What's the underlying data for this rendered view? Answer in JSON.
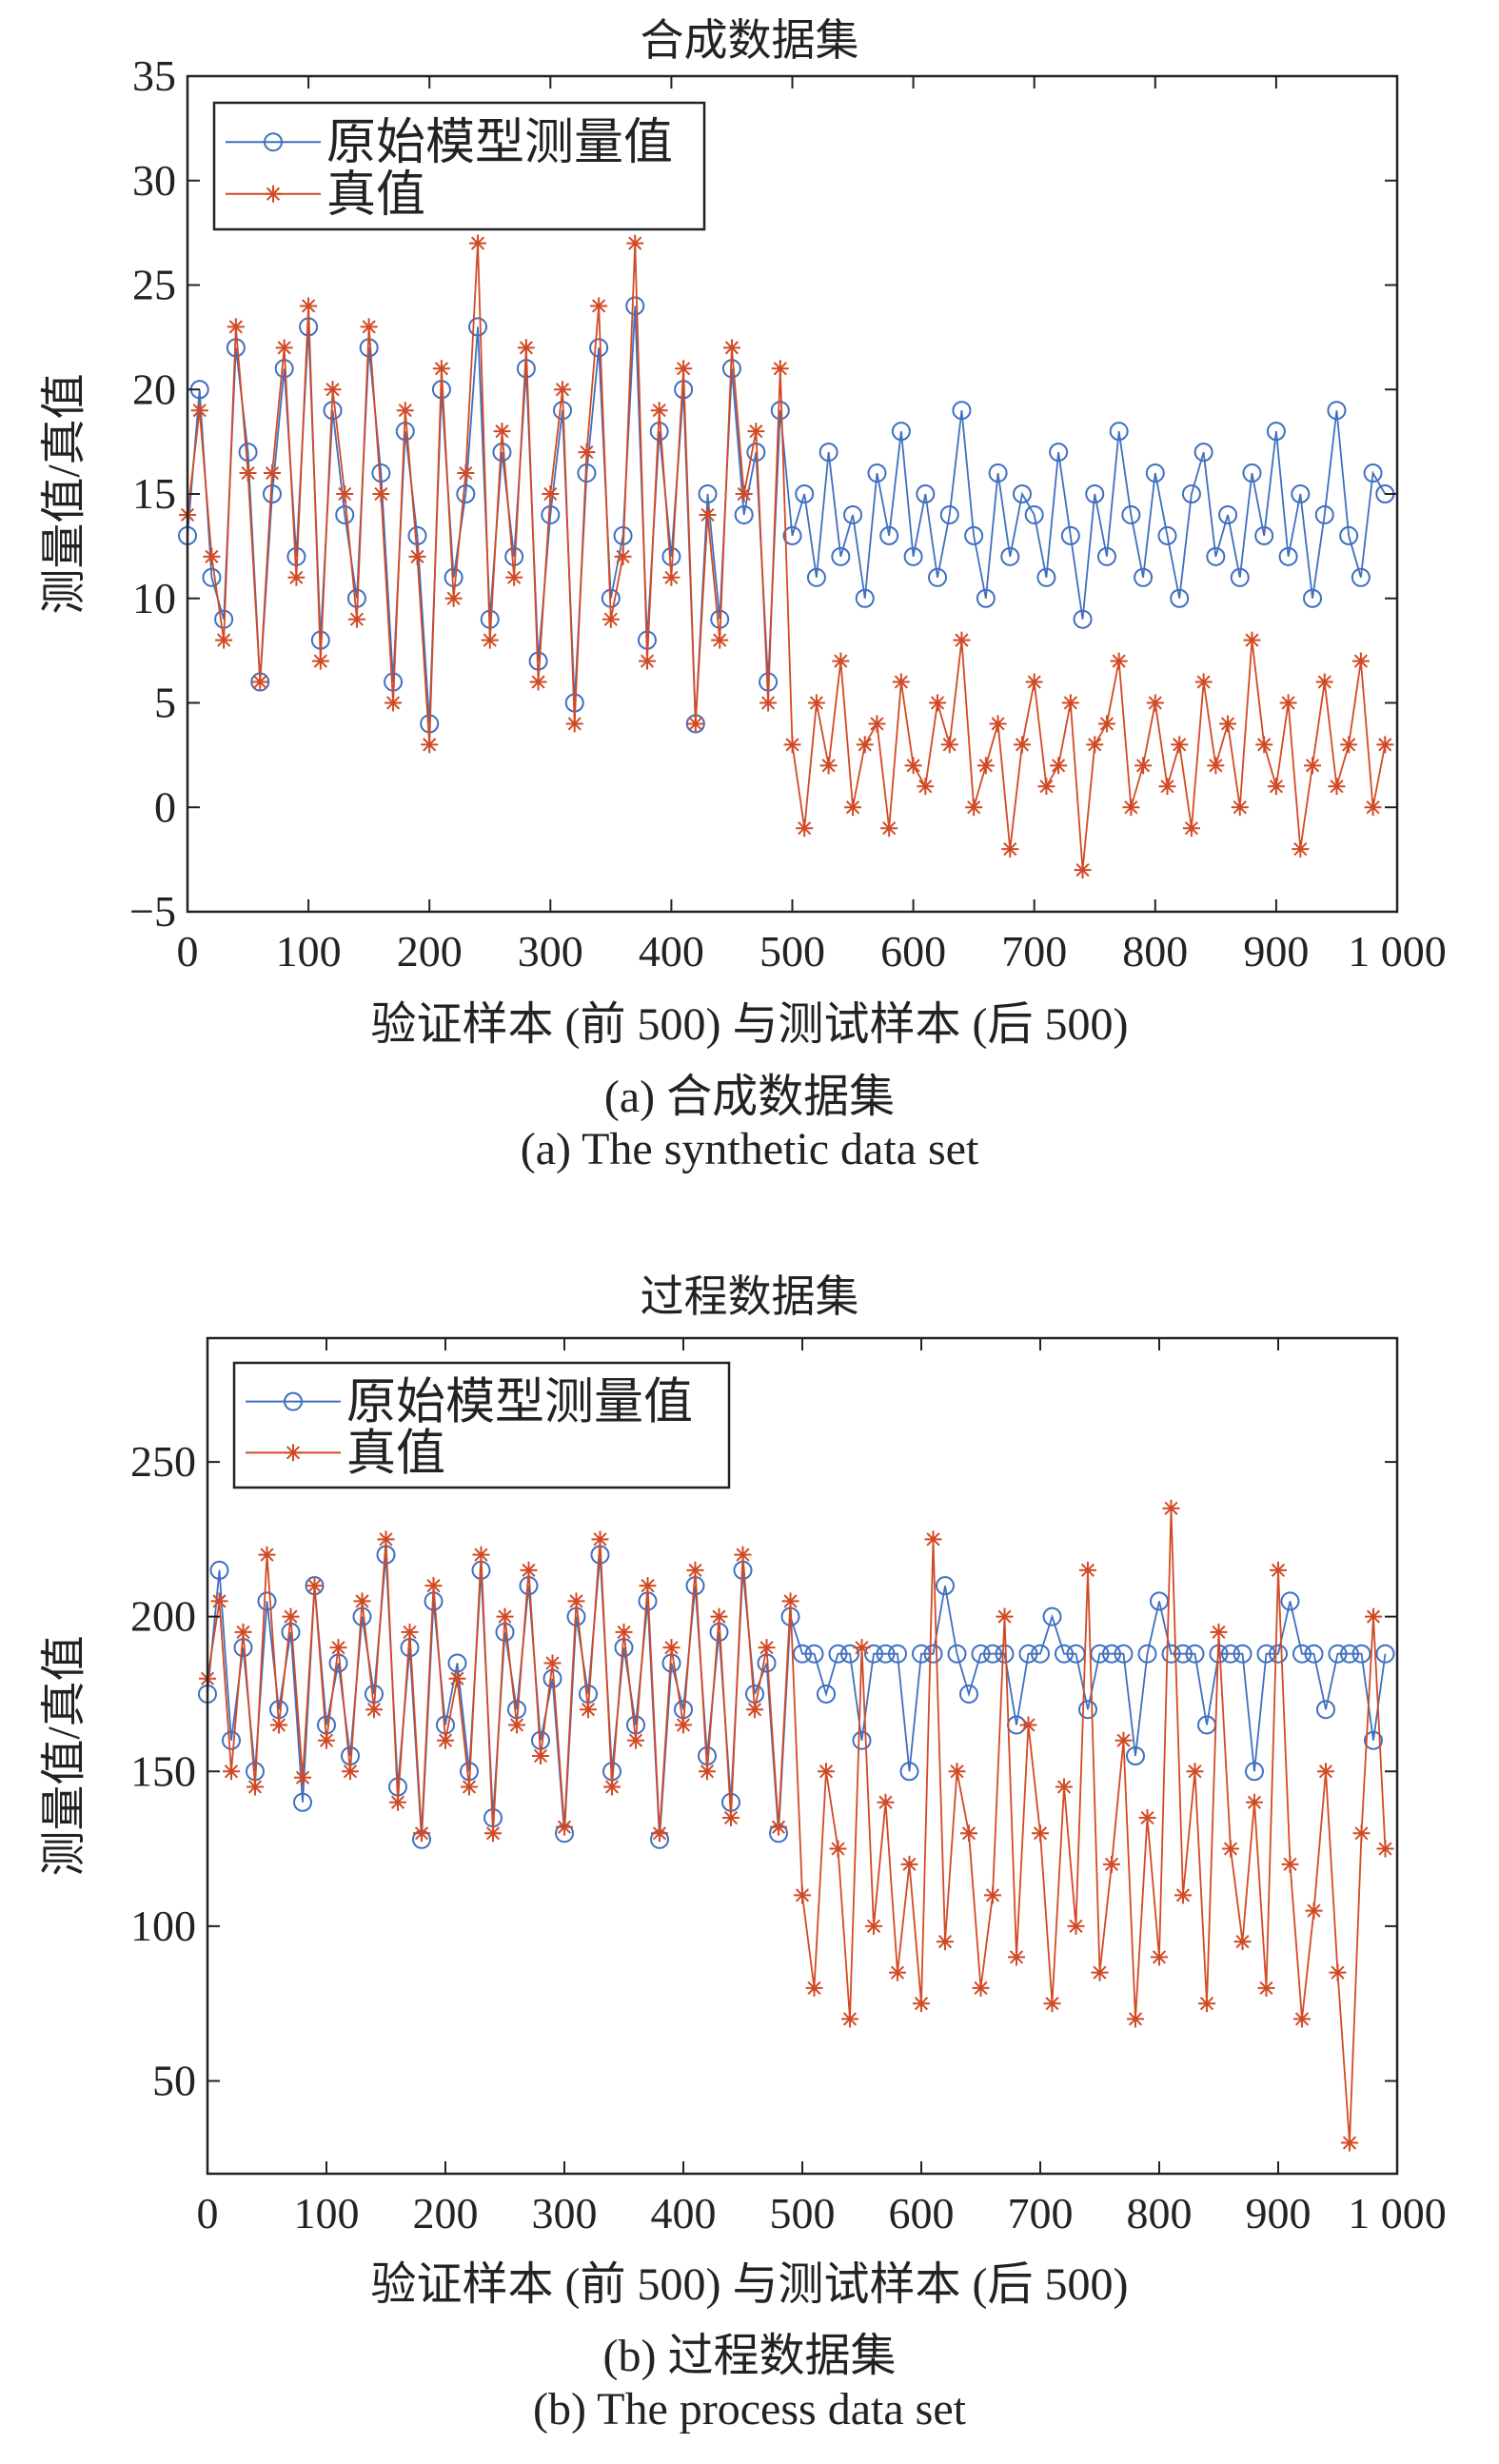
{
  "figure_a": {
    "caption_cn": "(a) 合成数据集",
    "caption_en": "(a) The synthetic data set"
  },
  "figure_b": {
    "caption_cn": "(b) 过程数据集",
    "caption_en": "(b) The process data set"
  },
  "colors": {
    "blue": "#3f6fc0",
    "red": "#d24a25",
    "axis": "#222222"
  },
  "chart_data": [
    {
      "type": "line",
      "title": "合成数据集",
      "xlabel": "验证样本 (前 500) 与测试样本 (后 500)",
      "ylabel": "测量值/真值",
      "xlim": [
        0,
        1000
      ],
      "ylim": [
        -5,
        35
      ],
      "xticks": [
        0,
        100,
        200,
        300,
        400,
        500,
        600,
        700,
        800,
        900,
        1000
      ],
      "xtick_labels": [
        "0",
        "100",
        "200",
        "300",
        "400",
        "500",
        "600",
        "700",
        "800",
        "900",
        "1 000"
      ],
      "yticks": [
        -5,
        0,
        5,
        10,
        15,
        20,
        25,
        30,
        35
      ],
      "ytick_labels": [
        "−5",
        "0",
        "5",
        "10",
        "15",
        "20",
        "25",
        "30",
        "35"
      ],
      "grid": false,
      "legend_position": "top-left",
      "x": [
        0,
        10,
        20,
        30,
        40,
        50,
        60,
        70,
        80,
        90,
        100,
        110,
        120,
        130,
        140,
        150,
        160,
        170,
        180,
        190,
        200,
        210,
        220,
        230,
        240,
        250,
        260,
        270,
        280,
        290,
        300,
        310,
        320,
        330,
        340,
        350,
        360,
        370,
        380,
        390,
        400,
        410,
        420,
        430,
        440,
        450,
        460,
        470,
        480,
        490,
        500,
        510,
        520,
        530,
        540,
        550,
        560,
        570,
        580,
        590,
        600,
        610,
        620,
        630,
        640,
        650,
        660,
        670,
        680,
        690,
        700,
        710,
        720,
        730,
        740,
        750,
        760,
        770,
        780,
        790,
        800,
        810,
        820,
        830,
        840,
        850,
        860,
        870,
        880,
        890,
        900,
        910,
        920,
        930,
        940,
        950,
        960,
        970,
        980,
        990
      ],
      "series": [
        {
          "name": "原始模型测量值",
          "marker": "circle",
          "color": "#3f6fc0",
          "values": [
            13,
            20,
            11,
            9,
            22,
            17,
            6,
            15,
            21,
            12,
            23,
            8,
            19,
            14,
            10,
            22,
            16,
            6,
            18,
            13,
            4,
            20,
            11,
            15,
            23,
            9,
            17,
            12,
            21,
            7,
            14,
            19,
            5,
            16,
            22,
            10,
            13,
            24,
            8,
            18,
            12,
            20,
            4,
            15,
            9,
            21,
            14,
            17,
            6,
            19,
            13,
            15,
            11,
            17,
            12,
            14,
            10,
            16,
            13,
            18,
            12,
            15,
            11,
            14,
            19,
            13,
            10,
            16,
            12,
            15,
            14,
            11,
            17,
            13,
            9,
            15,
            12,
            18,
            14,
            11,
            16,
            13,
            10,
            15,
            17,
            12,
            14,
            11,
            16,
            13,
            18,
            12,
            15,
            10,
            14,
            19,
            13,
            11,
            16,
            15
          ]
        },
        {
          "name": "真值",
          "marker": "asterisk",
          "color": "#d24a25",
          "values": [
            14,
            19,
            12,
            8,
            23,
            16,
            6,
            16,
            22,
            11,
            24,
            7,
            20,
            15,
            9,
            23,
            15,
            5,
            19,
            12,
            3,
            21,
            10,
            16,
            27,
            8,
            18,
            11,
            22,
            6,
            15,
            20,
            4,
            17,
            24,
            9,
            12,
            27,
            7,
            19,
            11,
            21,
            4,
            14,
            8,
            22,
            15,
            18,
            5,
            21,
            3,
            -1,
            5,
            2,
            7,
            0,
            3,
            4,
            -1,
            6,
            2,
            1,
            5,
            3,
            8,
            0,
            2,
            4,
            -2,
            3,
            6,
            1,
            2,
            5,
            -3,
            3,
            4,
            7,
            0,
            2,
            5,
            1,
            3,
            -1,
            6,
            2,
            4,
            0,
            8,
            3,
            1,
            5,
            -2,
            2,
            6,
            1,
            3,
            7,
            0,
            3
          ]
        }
      ]
    },
    {
      "type": "line",
      "title": "过程数据集",
      "xlabel": "验证样本 (前 500) 与测试样本 (后 500)",
      "ylabel": "测量值/真值",
      "xlim": [
        0,
        1000
      ],
      "ylim": [
        20,
        290
      ],
      "xticks": [
        0,
        100,
        200,
        300,
        400,
        500,
        600,
        700,
        800,
        900,
        1000
      ],
      "xtick_labels": [
        "0",
        "100",
        "200",
        "300",
        "400",
        "500",
        "600",
        "700",
        "800",
        "900",
        "1 000"
      ],
      "yticks": [
        50,
        100,
        150,
        200,
        250
      ],
      "ytick_labels": [
        "50",
        "100",
        "150",
        "200",
        "250"
      ],
      "grid": false,
      "legend_position": "top-left",
      "x": [
        0,
        10,
        20,
        30,
        40,
        50,
        60,
        70,
        80,
        90,
        100,
        110,
        120,
        130,
        140,
        150,
        160,
        170,
        180,
        190,
        200,
        210,
        220,
        230,
        240,
        250,
        260,
        270,
        280,
        290,
        300,
        310,
        320,
        330,
        340,
        350,
        360,
        370,
        380,
        390,
        400,
        410,
        420,
        430,
        440,
        450,
        460,
        470,
        480,
        490,
        500,
        510,
        520,
        530,
        540,
        550,
        560,
        570,
        580,
        590,
        600,
        610,
        620,
        630,
        640,
        650,
        660,
        670,
        680,
        690,
        700,
        710,
        720,
        730,
        740,
        750,
        760,
        770,
        780,
        790,
        800,
        810,
        820,
        830,
        840,
        850,
        860,
        870,
        880,
        890,
        900,
        910,
        920,
        930,
        940,
        950,
        960,
        970,
        980,
        990
      ],
      "series": [
        {
          "name": "原始模型测量值",
          "marker": "circle",
          "color": "#3f6fc0",
          "values": [
            175,
            215,
            160,
            190,
            150,
            205,
            170,
            195,
            140,
            210,
            165,
            185,
            155,
            200,
            175,
            220,
            145,
            190,
            128,
            205,
            165,
            185,
            150,
            215,
            135,
            195,
            170,
            210,
            160,
            180,
            130,
            200,
            175,
            220,
            150,
            190,
            165,
            205,
            128,
            185,
            170,
            210,
            155,
            195,
            140,
            215,
            175,
            185,
            130,
            200,
            188,
            188,
            175,
            188,
            188,
            160,
            188,
            188,
            188,
            150,
            188,
            188,
            210,
            188,
            175,
            188,
            188,
            188,
            165,
            188,
            188,
            200,
            188,
            188,
            170,
            188,
            188,
            188,
            155,
            188,
            205,
            188,
            188,
            188,
            165,
            188,
            188,
            188,
            150,
            188,
            188,
            205,
            188,
            188,
            170,
            188,
            188,
            188,
            160,
            188
          ]
        },
        {
          "name": "真值",
          "marker": "asterisk",
          "color": "#d24a25",
          "values": [
            180,
            205,
            150,
            195,
            145,
            220,
            165,
            200,
            148,
            210,
            160,
            190,
            150,
            205,
            170,
            225,
            140,
            195,
            130,
            210,
            160,
            180,
            145,
            220,
            130,
            200,
            165,
            215,
            155,
            185,
            132,
            205,
            170,
            225,
            145,
            195,
            160,
            210,
            130,
            190,
            165,
            215,
            150,
            200,
            135,
            220,
            170,
            190,
            132,
            205,
            110,
            80,
            150,
            125,
            70,
            190,
            100,
            140,
            85,
            120,
            75,
            225,
            95,
            150,
            130,
            80,
            110,
            200,
            90,
            165,
            130,
            75,
            145,
            100,
            215,
            85,
            120,
            160,
            70,
            135,
            90,
            235,
            110,
            150,
            75,
            195,
            125,
            95,
            140,
            80,
            215,
            120,
            70,
            105,
            150,
            85,
            30,
            130,
            200,
            125
          ]
        }
      ]
    }
  ]
}
